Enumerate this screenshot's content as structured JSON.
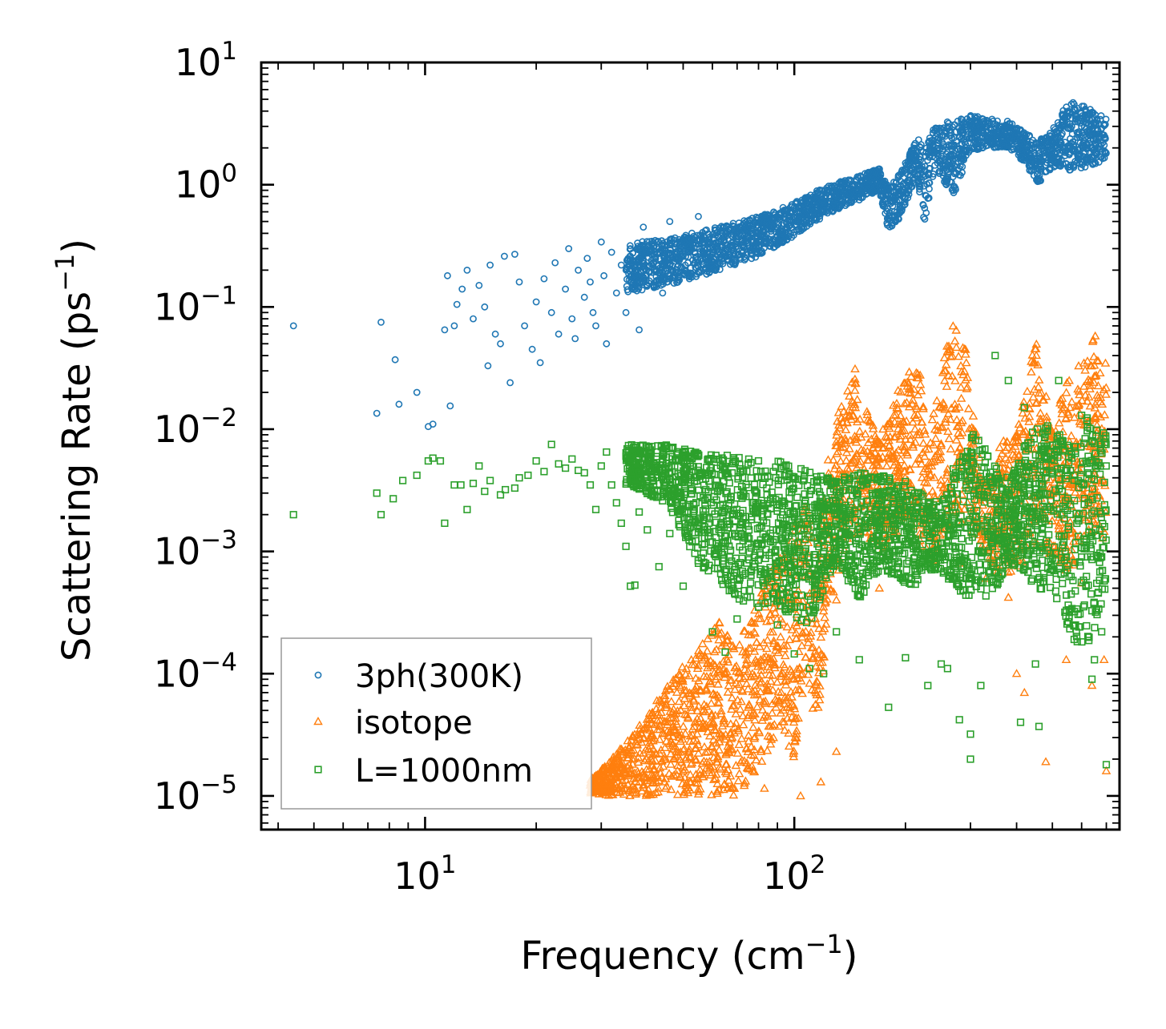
{
  "chart_data": {
    "type": "scatter",
    "title": "",
    "xlabel": "Frequency (cm",
    "xlabel_sup": "−1",
    "xlabel_end": ")",
    "ylabel": "Scattering Rate (ps",
    "ylabel_sup": "−1",
    "ylabel_end": ")",
    "xscale": "log",
    "yscale": "log",
    "xlim": [
      3.6,
      760
    ],
    "ylim": [
      5.3e-06,
      10
    ],
    "x_ticks": [
      {
        "value": 10,
        "base": "10",
        "exp": "1"
      },
      {
        "value": 100,
        "base": "10",
        "exp": "2"
      }
    ],
    "y_ticks": [
      {
        "value": 10,
        "base": "10",
        "exp": "1"
      },
      {
        "value": 1,
        "base": "10",
        "exp": "0"
      },
      {
        "value": 0.1,
        "base": "10",
        "exp": "−1"
      },
      {
        "value": 0.01,
        "base": "10",
        "exp": "−2"
      },
      {
        "value": 0.001,
        "base": "10",
        "exp": "−3"
      },
      {
        "value": 0.0001,
        "base": "10",
        "exp": "−4"
      },
      {
        "value": 1e-05,
        "base": "10",
        "exp": "−5"
      }
    ],
    "legend_position": "bottom-left",
    "series": [
      {
        "name": "3ph(300K)",
        "marker": "circle",
        "color": "#1f77b4",
        "points": [
          [
            4.4,
            0.07
          ],
          [
            7.6,
            0.075
          ],
          [
            7.4,
            0.0135
          ],
          [
            8.3,
            0.037
          ],
          [
            8.5,
            0.016
          ],
          [
            9.5,
            0.02
          ],
          [
            10.2,
            0.0105
          ],
          [
            10.5,
            0.011
          ],
          [
            11.7,
            0.0155
          ],
          [
            11.5,
            0.18
          ],
          [
            11.3,
            0.065
          ],
          [
            12.0,
            0.07
          ],
          [
            12.2,
            0.105
          ],
          [
            12.6,
            0.14
          ],
          [
            13.0,
            0.2
          ],
          [
            13.5,
            0.08
          ],
          [
            14.0,
            0.15
          ],
          [
            14.5,
            0.1
          ],
          [
            15.0,
            0.22
          ],
          [
            14.8,
            0.033
          ],
          [
            15.5,
            0.06
          ],
          [
            16.0,
            0.05
          ],
          [
            16.4,
            0.26
          ],
          [
            17.0,
            0.024
          ],
          [
            17.5,
            0.27
          ],
          [
            18.0,
            0.16
          ],
          [
            18.6,
            0.07
          ],
          [
            19.5,
            0.045
          ],
          [
            20.0,
            0.11
          ],
          [
            20.5,
            0.035
          ],
          [
            21.0,
            0.17
          ],
          [
            22.0,
            0.09
          ],
          [
            22.5,
            0.23
          ],
          [
            23.0,
            0.06
          ],
          [
            24.0,
            0.14
          ],
          [
            24.5,
            0.3
          ],
          [
            25.0,
            0.08
          ],
          [
            25.5,
            0.055
          ],
          [
            26.0,
            0.2
          ],
          [
            27.0,
            0.12
          ],
          [
            27.5,
            0.25
          ],
          [
            28.0,
            0.16
          ],
          [
            28.5,
            0.09
          ],
          [
            29.0,
            0.07
          ],
          [
            30.0,
            0.34
          ],
          [
            30.5,
            0.18
          ],
          [
            31.0,
            0.05
          ],
          [
            32.0,
            0.28
          ],
          [
            33.0,
            0.13
          ],
          [
            34.0,
            0.22
          ],
          [
            35.0,
            0.09
          ],
          [
            36.0,
            0.3
          ],
          [
            37.0,
            0.2
          ],
          [
            38.0,
            0.065
          ],
          [
            39.0,
            0.45
          ],
          [
            40.0,
            0.15
          ],
          [
            42.0,
            0.35
          ],
          [
            44.0,
            0.13
          ],
          [
            46.0,
            0.5
          ],
          [
            48.0,
            0.25
          ],
          [
            52.0,
            0.17
          ],
          [
            55.0,
            0.55
          ],
          [
            60.0,
            0.28
          ]
        ],
        "band": [
          [
            35,
            0.13,
            0.33
          ],
          [
            45,
            0.15,
            0.36
          ],
          [
            60,
            0.19,
            0.44
          ],
          [
            80,
            0.26,
            0.55
          ],
          [
            100,
            0.38,
            0.72
          ],
          [
            120,
            0.55,
            0.95
          ],
          [
            150,
            0.75,
            1.2
          ],
          [
            170,
            0.9,
            1.35
          ],
          [
            180,
            0.42,
            0.95
          ],
          [
            195,
            0.55,
            1.3
          ],
          [
            205,
            0.85,
            1.8
          ],
          [
            215,
            1.2,
            2.5
          ],
          [
            225,
            0.48,
            1.9
          ],
          [
            240,
            1.4,
            3.0
          ],
          [
            270,
            0.8,
            3.4
          ],
          [
            300,
            1.9,
            3.7
          ],
          [
            330,
            2.0,
            3.5
          ],
          [
            380,
            2.0,
            3.3
          ],
          [
            420,
            1.5,
            2.7
          ],
          [
            460,
            1.0,
            2.3
          ],
          [
            500,
            1.4,
            2.8
          ],
          [
            560,
            1.3,
            5.2
          ],
          [
            620,
            1.4,
            4.3
          ],
          [
            700,
            1.6,
            3.6
          ]
        ]
      },
      {
        "name": "isotope",
        "marker": "triangle",
        "color": "#ff7f0e",
        "band": [
          [
            28,
            1.05e-05,
            1.35e-05
          ],
          [
            32,
            1e-05,
            2e-05
          ],
          [
            38,
            1e-05,
            3.8e-05
          ],
          [
            45,
            1e-05,
            8e-05
          ],
          [
            55,
            1e-05,
            0.00016
          ],
          [
            62,
            1e-05,
            0.00028
          ],
          [
            70,
            1e-05,
            0.00016
          ],
          [
            80,
            1.6e-05,
            0.00045
          ],
          [
            90,
            3.5e-05,
            0.0009
          ],
          [
            100,
            2e-05,
            0.0017
          ],
          [
            108,
            0.00012,
            0.0026
          ],
          [
            115,
            2.5e-05,
            0.0008
          ],
          [
            125,
            0.00035,
            0.008
          ],
          [
            140,
            0.0012,
            0.025
          ],
          [
            150,
            0.0014,
            0.04
          ],
          [
            160,
            0.0012,
            0.012
          ],
          [
            175,
            0.001,
            0.01
          ],
          [
            190,
            0.0014,
            0.02
          ],
          [
            205,
            0.002,
            0.035
          ],
          [
            215,
            0.0013,
            0.05
          ],
          [
            230,
            0.0008,
            0.008
          ],
          [
            250,
            0.0008,
            0.03
          ],
          [
            270,
            0.0015,
            0.09
          ],
          [
            290,
            0.0018,
            0.05
          ],
          [
            310,
            0.0012,
            0.01
          ],
          [
            330,
            0.0009,
            0.003
          ],
          [
            360,
            0.0006,
            0.008
          ],
          [
            400,
            0.0007,
            0.009
          ],
          [
            450,
            0.0011,
            0.055
          ],
          [
            500,
            0.0009,
            0.012
          ],
          [
            560,
            0.0006,
            0.03
          ],
          [
            600,
            0.0013,
            0.035
          ],
          [
            650,
            0.0014,
            0.06
          ],
          [
            700,
            0.0012,
            0.035
          ]
        ],
        "points": [
          [
            83,
            1.15e-05
          ],
          [
            118,
            1.3e-05
          ],
          [
            104,
            1e-05
          ],
          [
            130,
            2.3e-05
          ],
          [
            360,
            0.0014
          ],
          [
            380,
            0.00042
          ],
          [
            400,
            0.0001
          ],
          [
            420,
            7e-05
          ],
          [
            480,
            1.9e-05
          ],
          [
            700,
            1.6e-05
          ],
          [
            690,
            0.00013
          ],
          [
            545,
            0.00013
          ],
          [
            640,
            8e-05
          ],
          [
            130,
            0.0004
          ],
          [
            85,
            0.0006
          ],
          [
            120,
            0.00035
          ],
          [
            280,
            0.0008
          ],
          [
            170,
            0.0005
          ],
          [
            330,
            0.0006
          ],
          [
            600,
            0.00055
          ]
        ]
      },
      {
        "name": "L=1000nm",
        "marker": "square",
        "color": "#2ca02c",
        "points": [
          [
            4.4,
            0.002
          ],
          [
            7.4,
            0.003
          ],
          [
            7.6,
            0.002
          ],
          [
            8.2,
            0.0027
          ],
          [
            8.7,
            0.0038
          ],
          [
            9.5,
            0.0042
          ],
          [
            10.2,
            0.0055
          ],
          [
            10.5,
            0.0058
          ],
          [
            11.0,
            0.0055
          ],
          [
            11.3,
            0.0017
          ],
          [
            12.0,
            0.0035
          ],
          [
            12.5,
            0.0035
          ],
          [
            13.0,
            0.0022
          ],
          [
            13.5,
            0.0036
          ],
          [
            14.0,
            0.005
          ],
          [
            14.5,
            0.0031
          ],
          [
            15.0,
            0.0038
          ],
          [
            16.0,
            0.0029
          ],
          [
            16.5,
            0.0032
          ],
          [
            17.5,
            0.0033
          ],
          [
            18.0,
            0.004
          ],
          [
            19.0,
            0.0042
          ],
          [
            20.0,
            0.0055
          ],
          [
            21.0,
            0.0045
          ],
          [
            22.0,
            0.0075
          ],
          [
            23.0,
            0.0052
          ],
          [
            24.0,
            0.0048
          ],
          [
            25.0,
            0.0057
          ],
          [
            26.0,
            0.0046
          ],
          [
            27.0,
            0.0044
          ],
          [
            28.0,
            0.0035
          ],
          [
            29.0,
            0.0022
          ],
          [
            30.0,
            0.005
          ],
          [
            31.0,
            0.0065
          ],
          [
            32.0,
            0.0035
          ],
          [
            33.0,
            0.0025
          ],
          [
            34.0,
            0.0017
          ],
          [
            35.0,
            0.0011
          ],
          [
            36.0,
            0.00052
          ],
          [
            37.0,
            0.00053
          ],
          [
            38.0,
            0.0021
          ],
          [
            40.0,
            0.0015
          ],
          [
            43.0,
            0.00075
          ],
          [
            46.0,
            0.0014
          ],
          [
            50.0,
            0.00052
          ],
          [
            55.0,
            0.0008
          ],
          [
            60.0,
            0.00022
          ],
          [
            65.0,
            0.00015
          ],
          [
            70.0,
            0.00028
          ],
          [
            80.0,
            0.00035
          ],
          [
            90.0,
            0.00025
          ],
          [
            100.0,
            0.000145
          ],
          [
            110.0,
            0.00011
          ],
          [
            120.0,
            0.0001
          ],
          [
            130.0,
            0.00022
          ],
          [
            150.0,
            0.00013
          ],
          [
            180.0,
            5.3e-05
          ],
          [
            200.0,
            0.000135
          ],
          [
            230.0,
            8e-05
          ],
          [
            260.0,
            0.00011
          ],
          [
            280.0,
            4.2e-05
          ],
          [
            300.0,
            3.2e-05
          ],
          [
            320.0,
            8e-05
          ],
          [
            350.0,
            0.04
          ],
          [
            380.0,
            0.025
          ],
          [
            420.0,
            0.015
          ],
          [
            460.0,
            3.7e-05
          ],
          [
            520.0,
            0.025
          ],
          [
            600.0,
            0.013
          ],
          [
            680.0,
            0.00022
          ],
          [
            700.0,
            1.8e-05
          ],
          [
            650.0,
            0.00013
          ],
          [
            640.0,
            9e-05
          ],
          [
            410.0,
            4e-05
          ],
          [
            300.0,
            2e-05
          ],
          [
            250.0,
            0.00012
          ],
          [
            450.0,
            0.00012
          ]
        ],
        "band": [
          [
            35,
            0.0035,
            0.0075
          ],
          [
            45,
            0.0025,
            0.0075
          ],
          [
            55,
            0.0008,
            0.0065
          ],
          [
            70,
            0.0004,
            0.006
          ],
          [
            90,
            0.00035,
            0.0055
          ],
          [
            110,
            0.00025,
            0.0045
          ],
          [
            130,
            0.0008,
            0.004
          ],
          [
            150,
            0.0004,
            0.0045
          ],
          [
            170,
            0.0007,
            0.0042
          ],
          [
            190,
            0.0006,
            0.004
          ],
          [
            210,
            0.0005,
            0.0038
          ],
          [
            225,
            0.0007,
            0.003
          ],
          [
            240,
            0.0007,
            0.0025
          ],
          [
            260,
            0.0006,
            0.0035
          ],
          [
            280,
            0.00045,
            0.0065
          ],
          [
            310,
            0.0004,
            0.01
          ],
          [
            340,
            0.0004,
            0.0055
          ],
          [
            380,
            0.0008,
            0.004
          ],
          [
            420,
            0.0007,
            0.0075
          ],
          [
            460,
            0.00045,
            0.012
          ],
          [
            500,
            0.00045,
            0.011
          ],
          [
            560,
            0.0002,
            0.007
          ],
          [
            620,
            0.00015,
            0.013
          ],
          [
            700,
            0.00045,
            0.009
          ]
        ]
      }
    ]
  }
}
